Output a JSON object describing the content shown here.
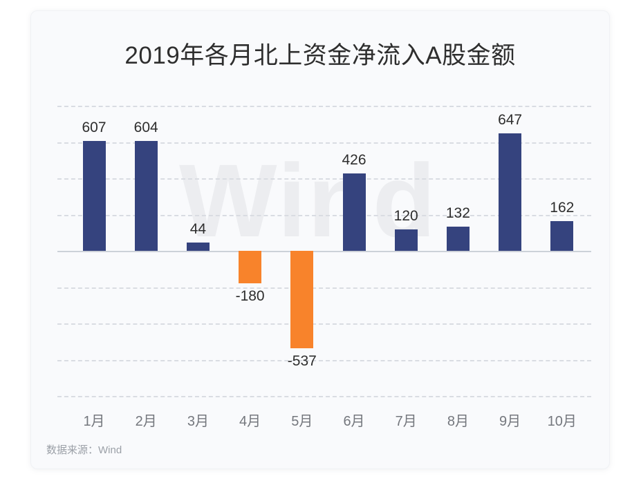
{
  "chart_data": {
    "type": "bar",
    "title": "2019年各月北上资金净流入A股金额",
    "categories": [
      "1月",
      "2月",
      "3月",
      "4月",
      "5月",
      "6月",
      "7月",
      "8月",
      "9月",
      "10月"
    ],
    "values": [
      607,
      604,
      44,
      -180,
      -537,
      426,
      120,
      132,
      647,
      162
    ],
    "value_labels": [
      607,
      604,
      44,
      -180,
      -537,
      426,
      120,
      132,
      647,
      162
    ],
    "xlabel": "",
    "ylabel": "",
    "ylim": [
      -800,
      800
    ],
    "grid_interval": 200,
    "grid": "horizontal-dashed",
    "zero_line": true,
    "y_tick_labels_visible": false,
    "legend": null,
    "colors": {
      "positive_bar": "#35437E",
      "negative_bar": "#F8832B",
      "title_text": "#2e2e2e",
      "axis_label_text": "#74777d",
      "gridline": "#d9dce2",
      "zero_line": "#ccd1d8",
      "card_background": "#f9fafc",
      "watermark_text": "#ecedf0",
      "source_text": "#9ba0a7"
    },
    "watermark": "Wind",
    "source_prefix": "数据来源：",
    "source_name": "Wind"
  }
}
